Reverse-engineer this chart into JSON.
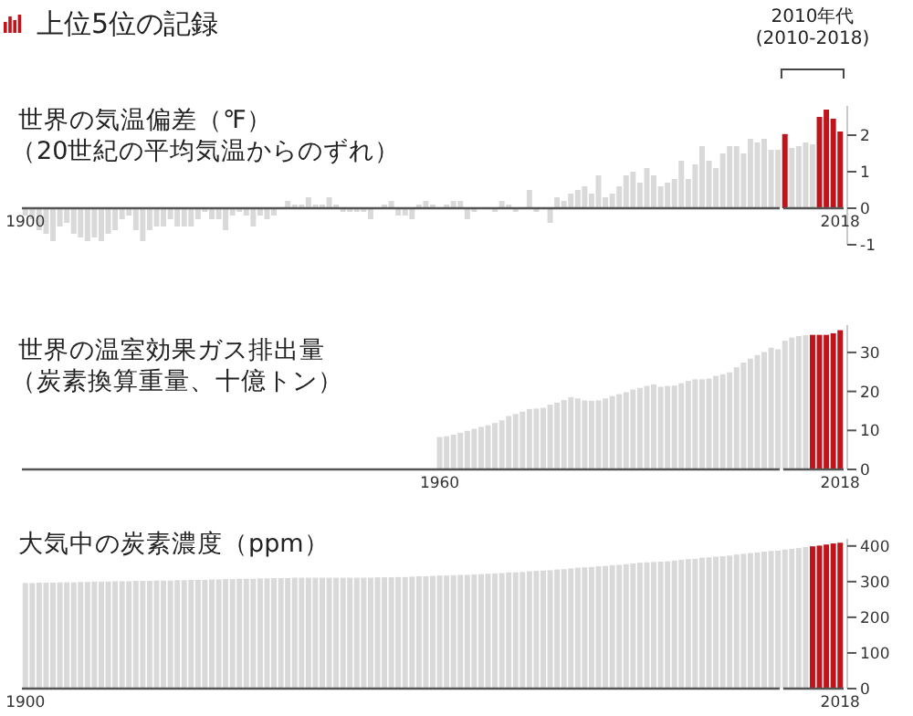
{
  "chart_data": [
    {
      "type": "bar",
      "title": "世界の気温偏差（℉）",
      "subtitle": "（20世紀の平均気温からのずれ）",
      "annotations": [
        "上位5位の記録",
        "2010年代 (2010-2018)"
      ],
      "xlim": [
        1899.5,
        2018.5
      ],
      "xticks": [
        1900,
        2018
      ],
      "ylim": [
        -1,
        2.8
      ],
      "yticks": [
        -1,
        0,
        1,
        2
      ],
      "series": [
        {
          "color": "#d9d9d9",
          "x": [
            1900,
            1901,
            1902,
            1903,
            1904,
            1905,
            1906,
            1907,
            1908,
            1909,
            1910,
            1911,
            1912,
            1913,
            1914,
            1915,
            1916,
            1917,
            1918,
            1919,
            1920,
            1921,
            1922,
            1923,
            1924,
            1925,
            1926,
            1927,
            1928,
            1929,
            1930,
            1931,
            1932,
            1933,
            1934,
            1935,
            1936,
            1937,
            1938,
            1939,
            1940,
            1941,
            1942,
            1943,
            1944,
            1945,
            1946,
            1947,
            1948,
            1949,
            1950,
            1951,
            1952,
            1953,
            1954,
            1955,
            1956,
            1957,
            1958,
            1959,
            1960,
            1961,
            1962,
            1963,
            1964,
            1965,
            1966,
            1967,
            1968,
            1969,
            1970,
            1971,
            1972,
            1973,
            1974,
            1975,
            1976,
            1977,
            1978,
            1979,
            1980,
            1981,
            1982,
            1983,
            1984,
            1985,
            1986,
            1987,
            1988,
            1989,
            1990,
            1991,
            1992,
            1993,
            1994,
            1995,
            1996,
            1997,
            1998,
            1999,
            2000,
            2001,
            2002,
            2003,
            2004,
            2005,
            2006,
            2007,
            2008,
            2009
          ],
          "values": [
            -0.2,
            -0.3,
            -0.6,
            -0.7,
            -0.9,
            -0.5,
            -0.4,
            -0.7,
            -0.8,
            -0.9,
            -0.8,
            -0.9,
            -0.7,
            -0.6,
            -0.3,
            -0.2,
            -0.6,
            -0.9,
            -0.6,
            -0.5,
            -0.5,
            -0.3,
            -0.5,
            -0.5,
            -0.5,
            -0.3,
            -0.1,
            -0.3,
            -0.3,
            -0.6,
            -0.2,
            -0.1,
            -0.2,
            -0.5,
            -0.2,
            -0.3,
            -0.2,
            0.0,
            0.2,
            0.1,
            0.1,
            0.3,
            0.1,
            0.1,
            0.3,
            0.1,
            -0.1,
            -0.1,
            -0.1,
            -0.1,
            -0.3,
            0.0,
            0.1,
            0.2,
            -0.2,
            -0.2,
            -0.3,
            0.1,
            0.2,
            0.1,
            0.0,
            0.1,
            0.2,
            0.2,
            -0.3,
            -0.1,
            0.0,
            0.0,
            -0.1,
            0.2,
            0.1,
            -0.1,
            0.0,
            0.5,
            -0.1,
            0.0,
            -0.4,
            0.3,
            0.2,
            0.4,
            0.5,
            0.6,
            0.4,
            0.9,
            0.3,
            0.4,
            0.6,
            0.9,
            1.0,
            0.7,
            1.1,
            0.9,
            0.6,
            0.7,
            0.8,
            1.3,
            0.8,
            1.2,
            1.7,
            1.3,
            1.1,
            1.5,
            1.7,
            1.7,
            1.5,
            1.9,
            1.8,
            1.9,
            1.6,
            1.6
          ]
        },
        {
          "colors": [
            "#c0141a",
            "#d9d9d9",
            "#d9d9d9",
            "#d9d9d9",
            "#d9d9d9",
            "#c0141a",
            "#c0141a",
            "#c0141a",
            "#c0141a"
          ],
          "x": [
            2010,
            2011,
            2012,
            2013,
            2014,
            2015,
            2016,
            2017,
            2018
          ],
          "values": [
            2.03,
            1.65,
            1.7,
            1.8,
            1.75,
            2.5,
            2.7,
            2.45,
            2.1
          ]
        }
      ]
    },
    {
      "type": "bar",
      "title": "世界の温室効果ガス排出量",
      "subtitle": "（炭素換算重量、十億トン）",
      "xlim": [
        1899.5,
        2018.5
      ],
      "xticks": [
        1960,
        2018
      ],
      "ylim": [
        0,
        37
      ],
      "yticks": [
        0,
        10,
        20,
        30
      ],
      "series": [
        {
          "color": "#d9d9d9",
          "x": [
            1960,
            1961,
            1962,
            1963,
            1964,
            1965,
            1966,
            1967,
            1968,
            1969,
            1970,
            1971,
            1972,
            1973,
            1974,
            1975,
            1976,
            1977,
            1978,
            1979,
            1980,
            1981,
            1982,
            1983,
            1984,
            1985,
            1986,
            1987,
            1988,
            1989,
            1990,
            1991,
            1992,
            1993,
            1994,
            1995,
            1996,
            1997,
            1998,
            1999,
            2000,
            2001,
            2002,
            2003,
            2004,
            2005,
            2006,
            2007,
            2008,
            2009
          ],
          "values": [
            8.3,
            8.5,
            8.9,
            9.4,
            9.9,
            10.4,
            10.9,
            11.3,
            11.9,
            12.6,
            13.7,
            14.2,
            14.8,
            15.5,
            15.6,
            15.8,
            16.6,
            17.1,
            17.8,
            18.5,
            18.2,
            17.7,
            17.6,
            17.7,
            18.2,
            18.8,
            19.3,
            19.8,
            20.5,
            20.9,
            21.4,
            21.8,
            21.2,
            21.4,
            21.5,
            22.1,
            22.7,
            23.1,
            23.1,
            23.3,
            24.0,
            24.4,
            24.9,
            26.2,
            27.4,
            28.4,
            29.3,
            30.1,
            31.2,
            30.8
          ]
        },
        {
          "colors": [
            "#d9d9d9",
            "#d9d9d9",
            "#d9d9d9",
            "#d9d9d9",
            "#c0141a",
            "#c0141a",
            "#c0141a",
            "#c0141a",
            "#c0141a"
          ],
          "x": [
            2010,
            2011,
            2012,
            2013,
            2014,
            2015,
            2016,
            2017,
            2018
          ],
          "values": [
            33.0,
            33.8,
            34.2,
            34.4,
            34.5,
            34.5,
            34.5,
            34.9,
            35.7
          ]
        }
      ]
    },
    {
      "type": "bar",
      "title": "大気中の炭素濃度（ppm）",
      "xlim": [
        1899.5,
        2018.5
      ],
      "xticks": [
        1900,
        2018
      ],
      "ylim": [
        0,
        420
      ],
      "yticks": [
        0,
        100,
        200,
        300,
        400
      ],
      "series": [
        {
          "color": "#d9d9d9",
          "x": [
            1900,
            1901,
            1902,
            1903,
            1904,
            1905,
            1906,
            1907,
            1908,
            1909,
            1910,
            1911,
            1912,
            1913,
            1914,
            1915,
            1916,
            1917,
            1918,
            1919,
            1920,
            1921,
            1922,
            1923,
            1924,
            1925,
            1926,
            1927,
            1928,
            1929,
            1930,
            1931,
            1932,
            1933,
            1934,
            1935,
            1936,
            1937,
            1938,
            1939,
            1940,
            1941,
            1942,
            1943,
            1944,
            1945,
            1946,
            1947,
            1948,
            1949,
            1950,
            1951,
            1952,
            1953,
            1954,
            1955,
            1956,
            1957,
            1958,
            1959,
            1960,
            1961,
            1962,
            1963,
            1964,
            1965,
            1966,
            1967,
            1968,
            1969,
            1970,
            1971,
            1972,
            1973,
            1974,
            1975,
            1976,
            1977,
            1978,
            1979,
            1980,
            1981,
            1982,
            1983,
            1984,
            1985,
            1986,
            1987,
            1988,
            1989,
            1990,
            1991,
            1992,
            1993,
            1994,
            1995,
            1996,
            1997,
            1998,
            1999,
            2000,
            2001,
            2002,
            2003,
            2004,
            2005,
            2006,
            2007,
            2008,
            2009
          ],
          "values": [
            296,
            296,
            297,
            297,
            297,
            298,
            298,
            298,
            299,
            299,
            300,
            300,
            300,
            301,
            301,
            301,
            302,
            302,
            302,
            303,
            303,
            303,
            304,
            304,
            305,
            305,
            305,
            306,
            306,
            307,
            307,
            308,
            308,
            308,
            309,
            309,
            310,
            310,
            310,
            311,
            311,
            311,
            311,
            311,
            311,
            311,
            311,
            311,
            311,
            311,
            311,
            312,
            312,
            312,
            313,
            313,
            314,
            315,
            315,
            316,
            317,
            317,
            318,
            319,
            319,
            320,
            321,
            322,
            323,
            324,
            326,
            326,
            327,
            329,
            330,
            331,
            332,
            334,
            335,
            337,
            339,
            340,
            341,
            343,
            344,
            346,
            347,
            349,
            351,
            353,
            354,
            355,
            356,
            357,
            359,
            361,
            363,
            364,
            367,
            368,
            370,
            371,
            373,
            376,
            378,
            380,
            382,
            384,
            386,
            387
          ]
        },
        {
          "colors": [
            "#d9d9d9",
            "#d9d9d9",
            "#d9d9d9",
            "#d9d9d9",
            "#c0141a",
            "#c0141a",
            "#c0141a",
            "#c0141a",
            "#c0141a"
          ],
          "x": [
            2010,
            2011,
            2012,
            2013,
            2014,
            2015,
            2016,
            2017,
            2018
          ],
          "values": [
            390,
            392,
            394,
            397,
            399,
            401,
            404,
            407,
            409
          ]
        }
      ]
    }
  ]
}
